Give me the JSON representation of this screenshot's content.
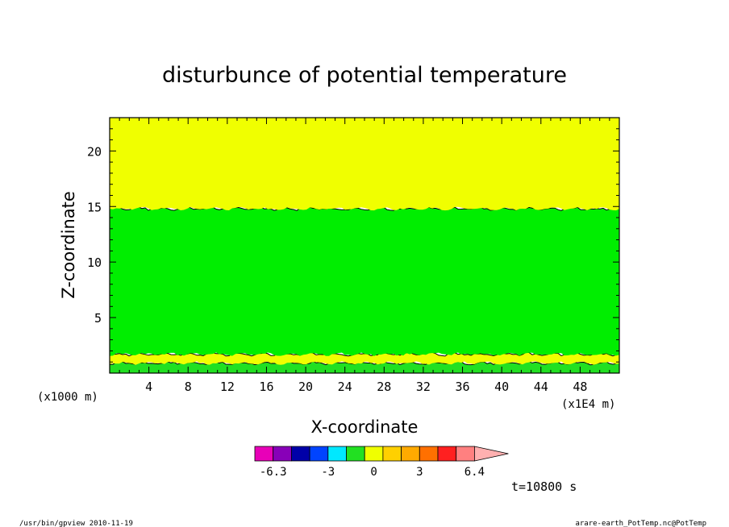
{
  "chart_data": {
    "type": "heatmap",
    "title": "disturbunce of potential temperature",
    "xlabel": "X-coordinate",
    "ylabel": "Z-coordinate",
    "x_unit_left": "(x1000 m)",
    "x_unit_right": "(x1E4 m)",
    "xlim": [
      0,
      52
    ],
    "ylim": [
      0,
      23
    ],
    "x_ticks": [
      4,
      8,
      12,
      16,
      20,
      24,
      28,
      32,
      36,
      40,
      44,
      48
    ],
    "y_ticks": [
      5,
      10,
      15,
      20
    ],
    "regions": [
      {
        "z_from": 0,
        "z_to": 0.9,
        "color": "#22e022"
      },
      {
        "z_from": 0.9,
        "z_to": 1.7,
        "color": "#f0ff00"
      },
      {
        "z_from": 1.7,
        "z_to": 14.8,
        "color": "#00ee00"
      },
      {
        "z_from": 14.8,
        "z_to": 23,
        "color": "#f0ff00"
      }
    ],
    "colorbar": {
      "colors": [
        "#e800b8",
        "#8800b8",
        "#0000a8",
        "#0044ff",
        "#00e8ff",
        "#22e022",
        "#f0ff00",
        "#ffd000",
        "#ffaa00",
        "#ff7000",
        "#ff2020",
        "#ff8080",
        "#ffb0b0"
      ],
      "labels": [
        {
          "text": "-6.3",
          "index": 0
        },
        {
          "text": "-3",
          "index": 3
        },
        {
          "text": "0",
          "index": 5.5
        },
        {
          "text": "3",
          "index": 8
        },
        {
          "text": "6.4",
          "index": 11
        }
      ]
    },
    "time_label": "t=10800 s",
    "footer_left": "/usr/bin/gpview   2010-11-19",
    "footer_right": "arare-earth_PotTemp.nc@PotTemp"
  }
}
